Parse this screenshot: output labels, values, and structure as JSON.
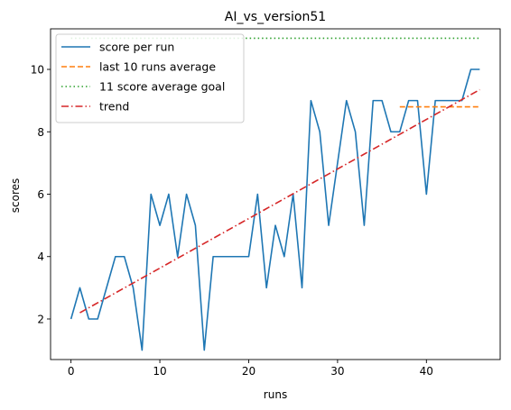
{
  "chart_data": {
    "type": "line",
    "title": "AI_vs_version51",
    "xlabel": "runs",
    "ylabel": "scores",
    "xlim": [
      -2.3,
      48.3
    ],
    "ylim": [
      0.7,
      11.3
    ],
    "xticks": [
      0,
      10,
      20,
      30,
      40
    ],
    "yticks": [
      2,
      4,
      6,
      8,
      10
    ],
    "grid": false,
    "legend_position": "top-left",
    "series": [
      {
        "name": "score per run",
        "style": "solid",
        "color": "#1f77b4",
        "x": [
          0,
          1,
          2,
          3,
          4,
          5,
          6,
          7,
          8,
          9,
          10,
          11,
          12,
          13,
          14,
          15,
          16,
          17,
          18,
          19,
          20,
          21,
          22,
          23,
          24,
          25,
          26,
          27,
          28,
          29,
          30,
          31,
          32,
          33,
          34,
          35,
          36,
          37,
          38,
          39,
          40,
          41,
          42,
          43,
          44,
          45,
          46
        ],
        "y": [
          2,
          3,
          2,
          2,
          3,
          4,
          4,
          3,
          1,
          6,
          5,
          6,
          4,
          6,
          5,
          1,
          4,
          4,
          4,
          4,
          4,
          6,
          3,
          5,
          4,
          6,
          3,
          9,
          8,
          5,
          7,
          9,
          8,
          5,
          9,
          9,
          8,
          8,
          9,
          9,
          6,
          9,
          9,
          9,
          9,
          10,
          10
        ]
      },
      {
        "name": "last 10 runs average",
        "style": "dashed",
        "color": "#ff7f0e",
        "x": [
          37,
          46
        ],
        "y": [
          8.8,
          8.8
        ]
      },
      {
        "name": "11 score average goal",
        "style": "dotted",
        "color": "#2ca02c",
        "x": [
          0,
          46
        ],
        "y": [
          11,
          11
        ]
      },
      {
        "name": "trend",
        "style": "dashdot",
        "color": "#d62728",
        "x": [
          1,
          46
        ],
        "y": [
          2.2,
          9.35
        ]
      }
    ]
  }
}
